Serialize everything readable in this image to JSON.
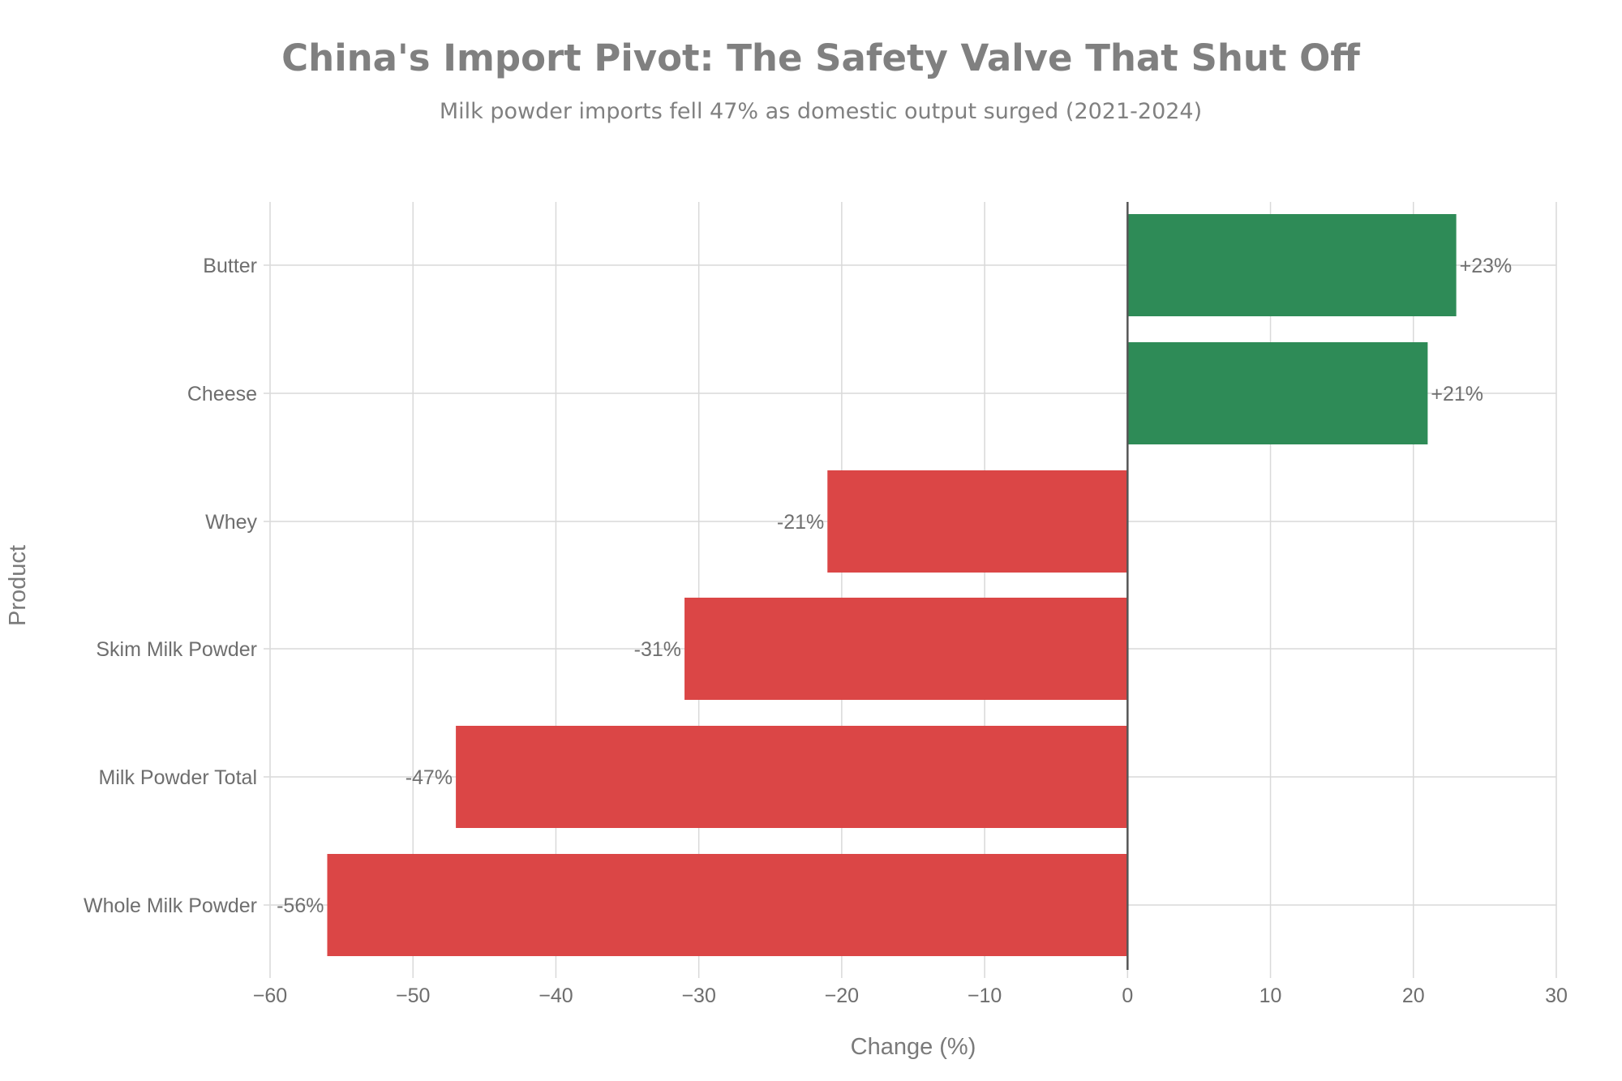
{
  "chart_data": {
    "type": "bar",
    "orientation": "horizontal",
    "title": "China's Import Pivot: The Safety Valve That Shut Off",
    "subtitle": "Milk powder imports fell 47% as domestic output surged (2021-2024)",
    "xlabel": "Change (%)",
    "ylabel": "Product",
    "xlim": [
      -60,
      30
    ],
    "xticks": [
      -60,
      -50,
      -40,
      -30,
      -20,
      -10,
      0,
      10,
      20,
      30
    ],
    "xtick_labels": [
      "−60",
      "−50",
      "−40",
      "−30",
      "−20",
      "−10",
      "0",
      "10",
      "20",
      "30"
    ],
    "grid": true,
    "categories": [
      "Butter",
      "Cheese",
      "Whey",
      "Skim Milk Powder",
      "Milk Powder Total",
      "Whole Milk Powder"
    ],
    "values": [
      23,
      21,
      -21,
      -31,
      -47,
      -56
    ],
    "data_labels": [
      "+23%",
      "+21%",
      "-21%",
      "-31%",
      "-47%",
      "-56%"
    ],
    "colors": {
      "positive": "#2e8b57",
      "negative": "#db4646"
    }
  }
}
